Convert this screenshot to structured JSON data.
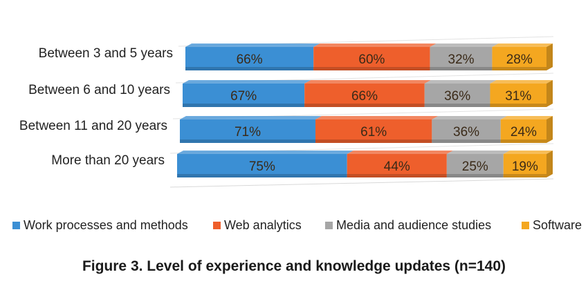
{
  "chart_data": {
    "type": "bar",
    "stacked": true,
    "orientation": "horizontal",
    "categories": [
      "Between 3 and 5 years",
      "Between 6 and 10 years",
      "Between 11 and 20 years",
      "More than 20 years"
    ],
    "series": [
      {
        "name": "Work processes and methods",
        "color": "#3b8fd4",
        "values": [
          66,
          67,
          71,
          75
        ]
      },
      {
        "name": "Web analytics",
        "color": "#ee5f2c",
        "values": [
          60,
          66,
          61,
          44
        ]
      },
      {
        "name": "Media and audience studies",
        "color": "#a6a6a6",
        "values": [
          32,
          36,
          36,
          25
        ]
      },
      {
        "name": "Software",
        "color": "#f4a720",
        "values": [
          28,
          31,
          24,
          19
        ]
      }
    ],
    "value_suffix": "%",
    "legend_position": "bottom",
    "grid": true,
    "title": "Figure 3. Level of experience and knowledge updates (n=140)"
  }
}
